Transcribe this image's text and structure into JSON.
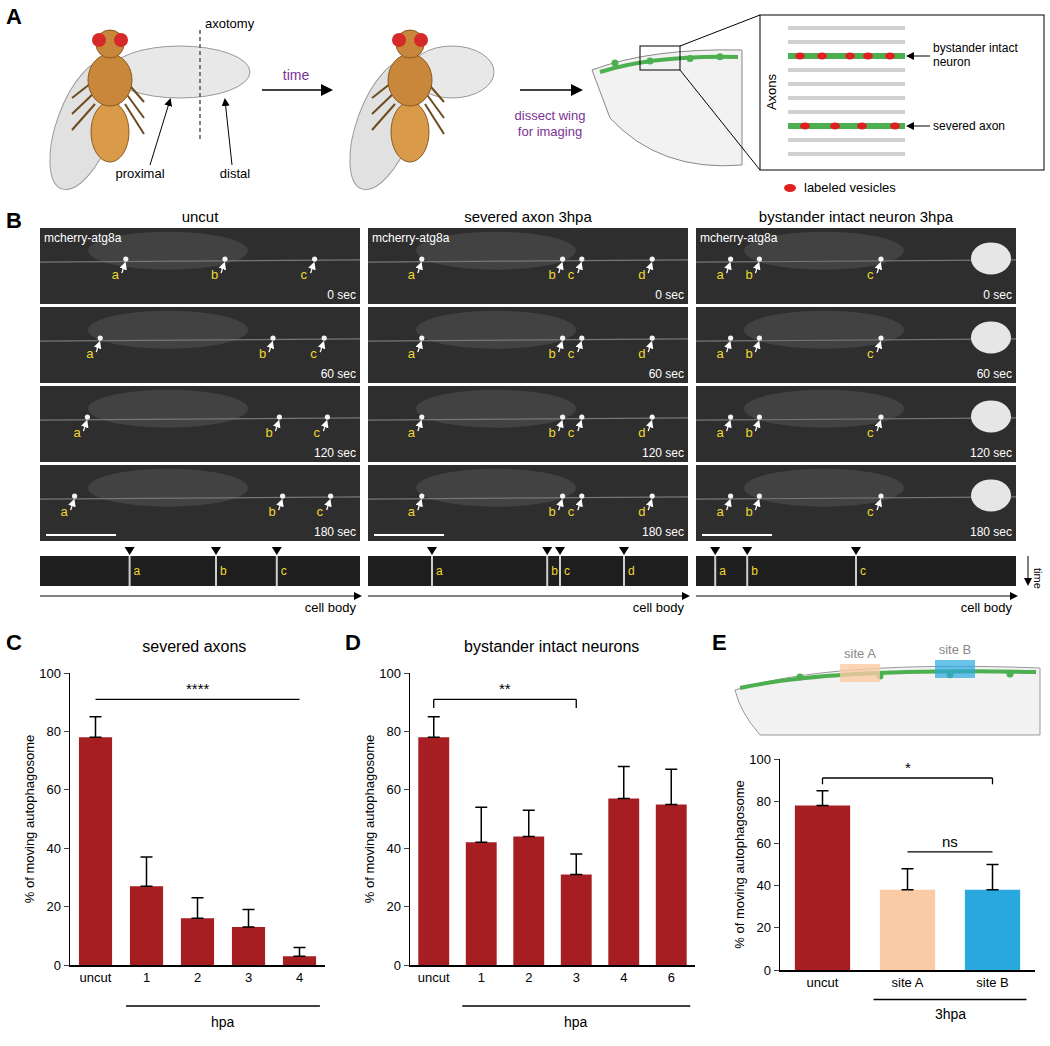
{
  "panel_labels": [
    "A",
    "B",
    "C",
    "D",
    "E"
  ],
  "panel_a": {
    "axotomy": "axotomy",
    "proximal": "proximal",
    "distal": "distal",
    "time": "time",
    "dissect": "dissect wing for imaging",
    "axons": "Axons",
    "bystander": "bystander intact neuron",
    "severed": "severed axon",
    "vesicles": "labeled vesicles"
  },
  "panel_b": {
    "columns": [
      {
        "title": "uncut",
        "letters": [
          "a",
          "b",
          "c"
        ]
      },
      {
        "title": "severed axon 3hpa",
        "letters": [
          "a",
          "b",
          "c",
          "d"
        ]
      },
      {
        "title": "bystander intact neuron 3hpa",
        "letters": [
          "a",
          "b",
          "c"
        ]
      }
    ],
    "marker_label": "mcherry-atg8a",
    "frames": [
      "0 sec",
      "60 sec",
      "120 sec",
      "180 sec"
    ],
    "kymograph_axis": "cell body",
    "kymograph_time": "time"
  },
  "panel_e_schematic": {
    "sites": [
      "site A",
      "site B"
    ]
  },
  "chart_data": [
    {
      "type": "bar",
      "title": "severed axons",
      "ylabel": "% of moving autophagosome",
      "categories": [
        "uncut",
        "1",
        "2",
        "3",
        "4"
      ],
      "values": [
        78,
        27,
        16,
        13,
        3
      ],
      "errors": [
        7,
        10,
        7,
        6,
        3
      ],
      "color": "#a61e22",
      "ylim": [
        0,
        100
      ],
      "yticks": [
        0,
        20,
        40,
        60,
        80,
        100
      ],
      "group": {
        "label": "hpa",
        "from": "1",
        "to": "4"
      },
      "significance": [
        {
          "text": "****",
          "from": "uncut",
          "to": "4",
          "line_style": "plain"
        }
      ]
    },
    {
      "type": "bar",
      "title": "bystander intact neurons",
      "ylabel": "% of moving autophagosome",
      "categories": [
        "uncut",
        "1",
        "2",
        "3",
        "4",
        "6"
      ],
      "values": [
        78,
        42,
        44,
        31,
        57,
        55
      ],
      "errors": [
        7,
        12,
        9,
        7,
        11,
        12
      ],
      "color": "#a61e22",
      "ylim": [
        0,
        100
      ],
      "yticks": [
        0,
        20,
        40,
        60,
        80,
        100
      ],
      "group": {
        "label": "hpa",
        "from": "1",
        "to": "6"
      },
      "significance": [
        {
          "text": "**",
          "from": "uncut",
          "to": "3",
          "line_style": "bracket"
        }
      ]
    },
    {
      "type": "bar",
      "ylabel": "% of moving autophagosome",
      "categories": [
        "uncut",
        "site A",
        "site B"
      ],
      "values": [
        78,
        38,
        38
      ],
      "errors": [
        7,
        10,
        12
      ],
      "colors": [
        "#a61e22",
        "#fbcba5",
        "#29a8e0"
      ],
      "ylim": [
        0,
        100
      ],
      "yticks": [
        0,
        20,
        40,
        60,
        80,
        100
      ],
      "group": {
        "label": "3hpa",
        "from": "site A",
        "to": "site B"
      },
      "significance": [
        {
          "text": "*",
          "from": "uncut",
          "to": "site B",
          "line_style": "bracket"
        },
        {
          "text": "ns",
          "from": "site A",
          "to": "site B",
          "line_style": "plain"
        }
      ]
    }
  ]
}
